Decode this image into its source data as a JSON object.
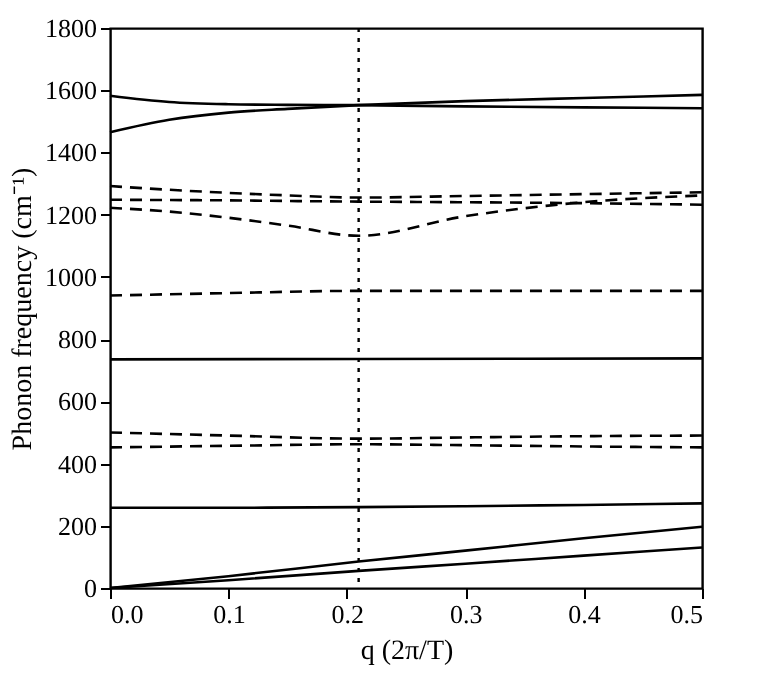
{
  "chart_data": {
    "type": "line",
    "xlabel": "q (2π/T)",
    "ylabel": "Phonon frequency (cm⁻¹)",
    "xlim": [
      0,
      0.5
    ],
    "ylim": [
      0,
      1800
    ],
    "xticks": [
      {
        "value": 0,
        "label": "0.0"
      },
      0.1,
      0.2,
      0.3,
      0.4,
      0.5
    ],
    "yticks": [
      0,
      200,
      400,
      600,
      800,
      1000,
      1200,
      1400,
      1600,
      1800
    ],
    "grid": false,
    "marker": "none",
    "ref_lines": [
      {
        "axis": "x",
        "value": 0.21,
        "color": "#000000",
        "line_style": "dotted"
      }
    ],
    "series": [
      {
        "color": "#000000",
        "line_style": "solid",
        "x": [
          0,
          0.05,
          0.1,
          0.15,
          0.21,
          0.3,
          0.4,
          0.5
        ],
        "values": [
          1582,
          1562,
          1555,
          1553,
          1552,
          1548,
          1545,
          1542
        ]
      },
      {
        "color": "#000000",
        "line_style": "solid",
        "x": [
          0,
          0.05,
          0.1,
          0.15,
          0.21,
          0.3,
          0.4,
          0.5
        ],
        "values": [
          1465,
          1505,
          1528,
          1540,
          1552,
          1565,
          1575,
          1585
        ]
      },
      {
        "color": "#000000",
        "line_style": "dashed",
        "x": [
          0,
          0.05,
          0.1,
          0.15,
          0.21,
          0.3,
          0.4,
          0.5
        ],
        "values": [
          1292,
          1280,
          1270,
          1262,
          1255,
          1260,
          1266,
          1272
        ]
      },
      {
        "color": "#000000",
        "line_style": "dashed",
        "x": [
          0,
          0.05,
          0.1,
          0.15,
          0.21,
          0.3,
          0.4,
          0.5
        ],
        "values": [
          1248,
          1247,
          1246,
          1244,
          1242,
          1240,
          1237,
          1232
        ]
      },
      {
        "color": "#000000",
        "line_style": "dashed",
        "x": [
          0,
          0.05,
          0.1,
          0.15,
          0.21,
          0.3,
          0.4,
          0.5
        ],
        "values": [
          1222,
          1210,
          1190,
          1165,
          1132,
          1195,
          1240,
          1262
        ]
      },
      {
        "color": "#000000",
        "line_style": "dashed",
        "x": [
          0,
          0.1,
          0.21,
          0.3,
          0.4,
          0.5
        ],
        "values": [
          940,
          948,
          955,
          955,
          955,
          955
        ]
      },
      {
        "color": "#000000",
        "line_style": "solid",
        "x": [
          0,
          0.21,
          0.5
        ],
        "values": [
          735,
          736,
          738
        ]
      },
      {
        "color": "#000000",
        "line_style": "dashed",
        "x": [
          0,
          0.1,
          0.21,
          0.3,
          0.4,
          0.5
        ],
        "values": [
          500,
          490,
          480,
          484,
          488,
          490
        ]
      },
      {
        "color": "#000000",
        "line_style": "dashed",
        "x": [
          0,
          0.1,
          0.21,
          0.3,
          0.4,
          0.5
        ],
        "values": [
          452,
          457,
          462,
          459,
          455,
          452
        ]
      },
      {
        "color": "#000000",
        "line_style": "solid",
        "x": [
          0,
          0.1,
          0.21,
          0.3,
          0.4,
          0.5
        ],
        "values": [
          258,
          258,
          260,
          263,
          267,
          272
        ]
      },
      {
        "color": "#000000",
        "line_style": "solid",
        "x": [
          0,
          0.1,
          0.21,
          0.3,
          0.4,
          0.5
        ],
        "values": [
          0,
          38,
          85,
          120,
          160,
          197
        ]
      },
      {
        "color": "#000000",
        "line_style": "solid",
        "x": [
          0,
          0.1,
          0.21,
          0.3,
          0.4,
          0.5
        ],
        "values": [
          0,
          25,
          55,
          78,
          104,
          130
        ]
      }
    ]
  }
}
